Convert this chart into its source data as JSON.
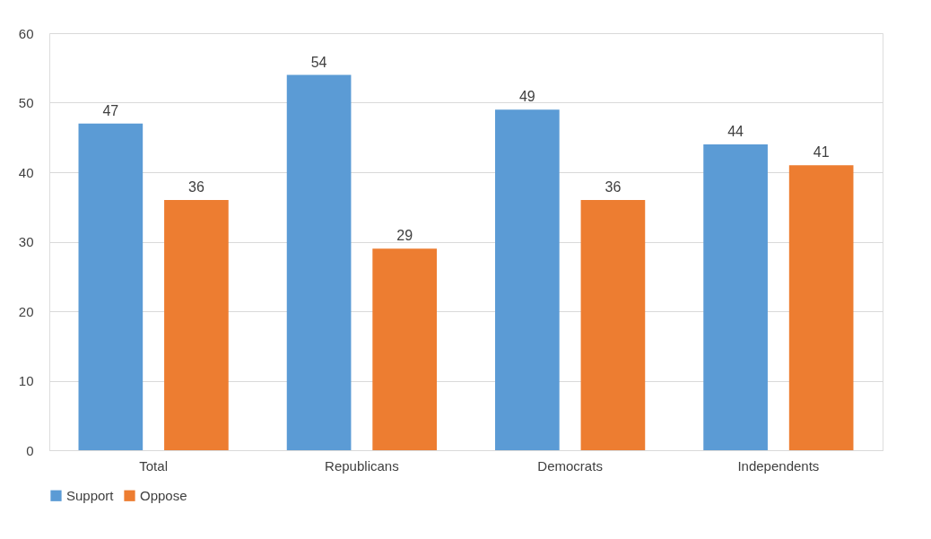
{
  "chart_data": {
    "type": "bar",
    "categories": [
      "Total",
      "Republicans",
      "Democrats",
      "Independents"
    ],
    "series": [
      {
        "name": "Support",
        "color": "#5b9bd5",
        "values": [
          47,
          54,
          49,
          44
        ]
      },
      {
        "name": "Oppose",
        "color": "#ed7d31",
        "values": [
          36,
          29,
          36,
          41
        ]
      }
    ],
    "ylim": [
      0,
      60
    ],
    "yticks": [
      0,
      10,
      20,
      30,
      40,
      50,
      60
    ],
    "grid": "y",
    "legend": "bottom",
    "data_labels": true
  }
}
